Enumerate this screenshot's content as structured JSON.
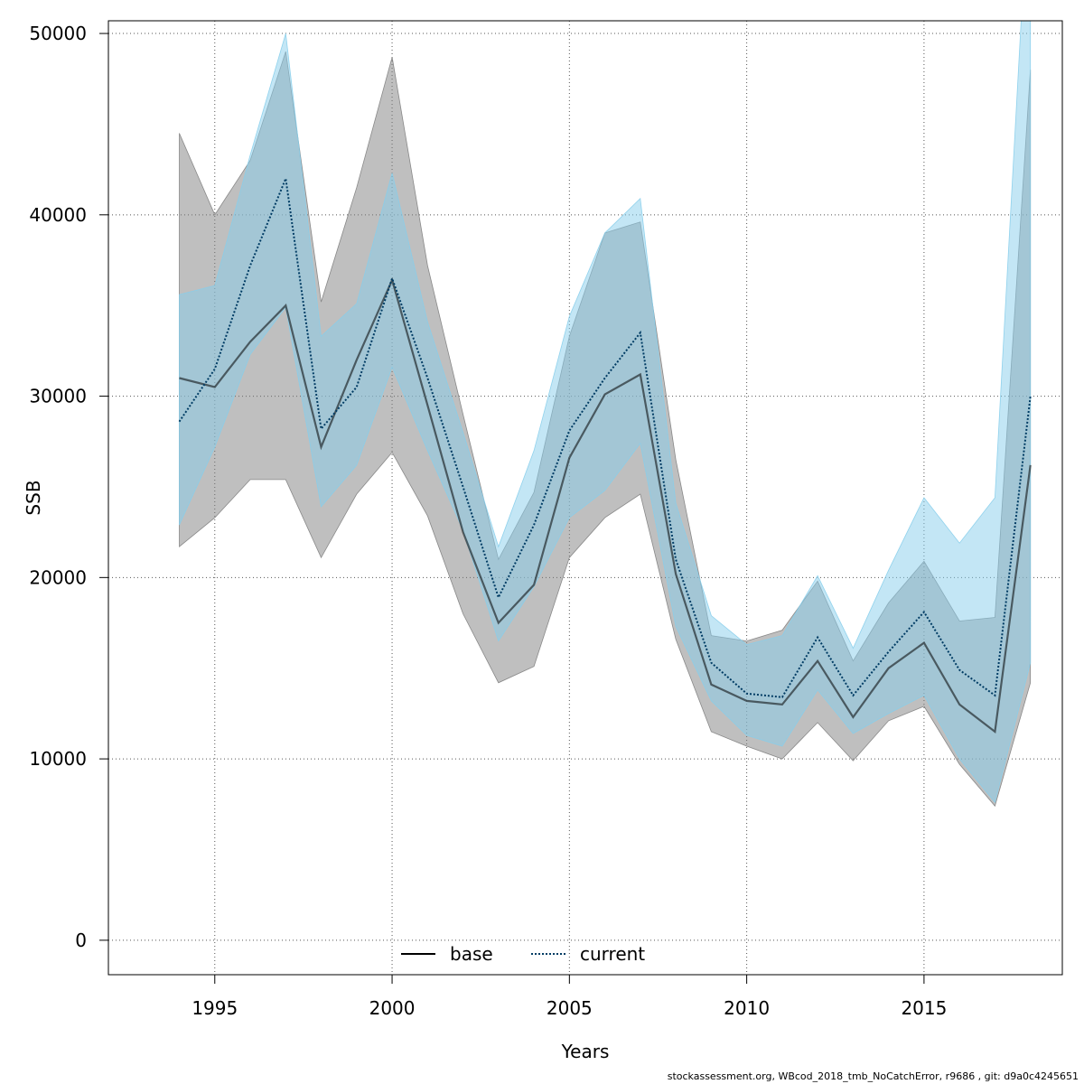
{
  "chart_data": {
    "type": "line",
    "xlabel": "Years",
    "ylabel": "SSB",
    "xlim": [
      1992.0,
      2018.9
    ],
    "ylim": [
      -1900,
      50700
    ],
    "x_ticks": [
      1995,
      2000,
      2005,
      2010,
      2015
    ],
    "y_ticks": [
      0,
      10000,
      20000,
      30000,
      40000,
      50000
    ],
    "grid": true,
    "legend_position": "bottom-center",
    "x": [
      1994,
      1995,
      1996,
      1997,
      1998,
      1999,
      2000,
      2001,
      2002,
      2003,
      2004,
      2005,
      2006,
      2007,
      2008,
      2009,
      2010,
      2011,
      2012,
      2013,
      2014,
      2015,
      2016,
      2017,
      2018
    ],
    "series": [
      {
        "name": "base",
        "line_style": "solid",
        "line_color": "#000000",
        "band_color": "#808080",
        "values": [
          31000,
          30500,
          33000,
          35000,
          27200,
          32000,
          36400,
          29500,
          22500,
          17500,
          19600,
          26600,
          30100,
          31200,
          20200,
          14100,
          13200,
          13000,
          15400,
          12300,
          15000,
          16400,
          13000,
          11500,
          26200
        ],
        "lower": [
          21700,
          23300,
          25400,
          25400,
          21100,
          24600,
          26900,
          23400,
          18000,
          14200,
          15100,
          21100,
          23300,
          24600,
          16600,
          11500,
          10700,
          10000,
          12000,
          9900,
          12100,
          12900,
          9700,
          7400,
          14200
        ],
        "upper": [
          44500,
          40000,
          43000,
          49000,
          35200,
          41500,
          48700,
          37200,
          29000,
          21000,
          24700,
          33300,
          39000,
          39600,
          26500,
          16800,
          16500,
          17100,
          19800,
          15400,
          18600,
          20900,
          17600,
          17800,
          48000
        ]
      },
      {
        "name": "current",
        "line_style": "dotted",
        "line_color": "#003c64",
        "band_color": "#87ceeb",
        "values": [
          28600,
          31500,
          37200,
          42000,
          28200,
          30500,
          36500,
          31000,
          25000,
          18900,
          22900,
          28100,
          31000,
          33500,
          21000,
          15300,
          13600,
          13400,
          16700,
          13500,
          15900,
          18100,
          14900,
          13500,
          30000
        ],
        "lower": [
          22900,
          27200,
          32300,
          34900,
          23900,
          26200,
          31600,
          27000,
          22600,
          16500,
          19500,
          23300,
          24800,
          27400,
          17300,
          13200,
          11300,
          10700,
          13800,
          11400,
          12500,
          13500,
          10000,
          7600,
          15300
        ],
        "upper": [
          35600,
          36100,
          43300,
          50000,
          33300,
          35100,
          42300,
          34100,
          28000,
          21700,
          27000,
          34400,
          39000,
          40900,
          24100,
          17900,
          16300,
          16800,
          20100,
          16100,
          20400,
          24400,
          21900,
          24400,
          60000
        ]
      }
    ]
  },
  "footer": "stockassessment.org, WBcod_2018_tmb_NoCatchError, r9686 , git: d9a0c4245651"
}
